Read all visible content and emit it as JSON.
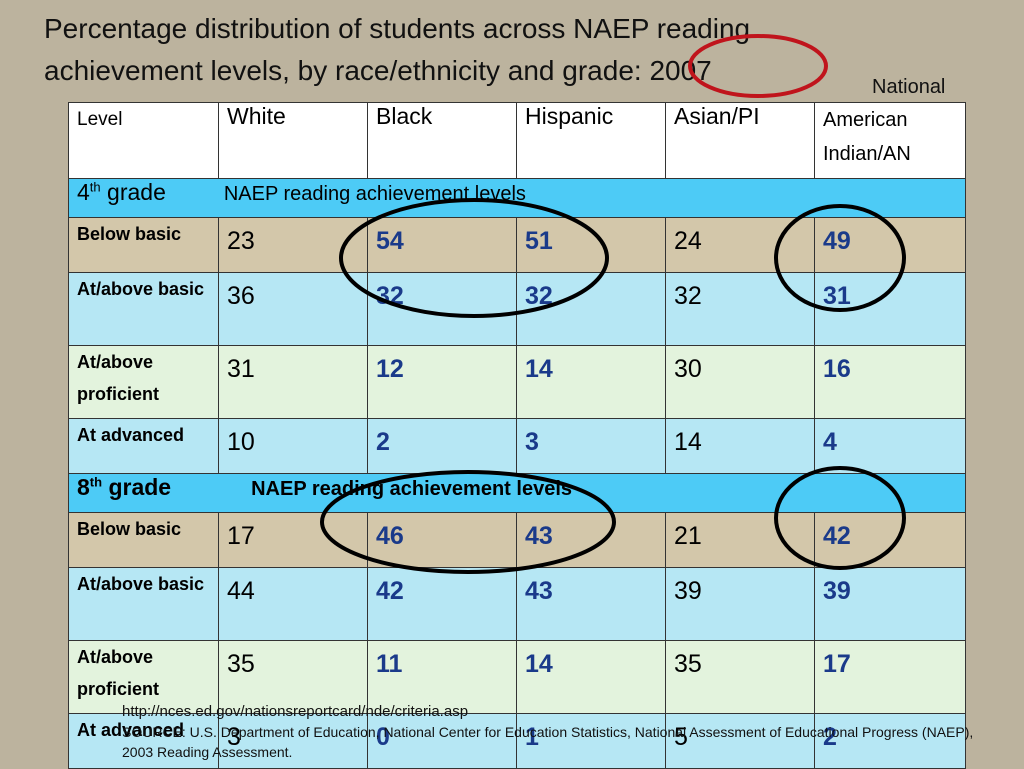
{
  "title_line1": "Percentage distribution of students across NAEP reading",
  "title_line2": "achievement levels, by race/ethnicity and grade: 2007",
  "national_label": "National",
  "table": {
    "headers": [
      "Level",
      "White",
      "Black",
      "Hispanic",
      "Asian/PI"
    ],
    "header_ai_line1": "American",
    "header_ai_line2": "Indian/AN",
    "grade4_label_num": "4",
    "grade4_label_sup": "th",
    "grade4_label_word": "grade",
    "grade8_label_num": "8",
    "grade8_label_sup": "th",
    "grade8_label_word": "grade",
    "grade_sublabel": "NAEP reading achievement levels",
    "level_labels": [
      "Below basic",
      "At/above basic",
      "At/above proficient",
      "At advanced"
    ],
    "grade4": [
      [
        "23",
        "54",
        "51",
        "24",
        "49"
      ],
      [
        "36",
        "32",
        "32",
        "32",
        "31"
      ],
      [
        "31",
        "12",
        "14",
        "30",
        "16"
      ],
      [
        "10",
        "2",
        "3",
        "14",
        "4"
      ]
    ],
    "grade8": [
      [
        "17",
        "46",
        "43",
        "21",
        "42"
      ],
      [
        "44",
        "42",
        "43",
        "39",
        "39"
      ],
      [
        "35",
        "11",
        "14",
        "35",
        "17"
      ],
      [
        "3",
        "0",
        "1",
        "5",
        "2"
      ]
    ]
  },
  "footer": {
    "url": "http://nces.ed.gov/nationsreportcard/nde/criteria.asp",
    "source": "SOURCE: U.S. Department of Education, National Center for Education Statistics, National Assessment of Educational Progress (NAEP), 2003 Reading Assessment."
  },
  "colors": {
    "background": "#bcb39e",
    "grade_row": "#4dcbf6",
    "emphasis_text": "#1a3a8a",
    "red_circle": "#c0141c"
  }
}
